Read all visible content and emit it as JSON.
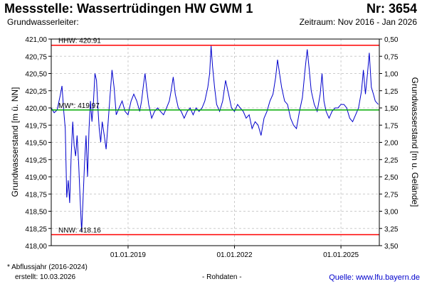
{
  "header": {
    "title": "Messstelle: Wassertrüdingen HW GWM 1",
    "number": "Nr: 3654",
    "aquifer_label": "Grundwasserleiter:",
    "period": "Zeitraum: Nov 2016 - Jan 2026"
  },
  "footer": {
    "note": "* Abflussjahr (2016-2024)",
    "created": "erstellt:  10.03.2026",
    "raw_data": "- Rohdaten -",
    "source": "Quelle: www.lfu.bayern.de"
  },
  "colors": {
    "series": "#0000cc",
    "extreme_lines": "#ff0000",
    "mean_line": "#00aa00",
    "grid": "#cccccc"
  },
  "chart_data": {
    "type": "line",
    "ylabel": "Grundwasserstand [m ü. NN]",
    "ylabel_right": "Grundwasserstand [m u. Gelände]",
    "x_range": [
      "2016-11-01",
      "2026-01-31"
    ],
    "x_ticks": [
      {
        "date": "2019-01-01",
        "label": "01.01.2019"
      },
      {
        "date": "2022-01-01",
        "label": "01.01.2022"
      },
      {
        "date": "2025-01-01",
        "label": "01.01.2025"
      }
    ],
    "ylim": [
      418.0,
      421.0
    ],
    "yticks": [
      "421,00",
      "420,75",
      "420,50",
      "420,25",
      "420,00",
      "419,75",
      "419,50",
      "419,25",
      "419,00",
      "418,75",
      "418,50",
      "418,25",
      "418,00"
    ],
    "ylim_right": [
      0.5,
      3.5
    ],
    "yticks_right": [
      "0,50",
      "0,75",
      "1,00",
      "1,25",
      "1,50",
      "1,75",
      "2,00",
      "2,25",
      "2,50",
      "2,75",
      "3,00",
      "3,25",
      "3,50"
    ],
    "grid": true,
    "reference_lines": [
      {
        "label": "HHW: 420.91",
        "value": 420.91,
        "color": "#ff0000"
      },
      {
        "label": "MW*: 419.97",
        "value": 419.97,
        "color": "#00aa00"
      },
      {
        "label": "NNW: 418.16",
        "value": 418.16,
        "color": "#ff0000"
      }
    ],
    "series": [
      {
        "values": [
          {
            "x": "2016-11-01",
            "y": 420.0
          },
          {
            "x": "2016-12-01",
            "y": 419.93
          },
          {
            "x": "2017-01-01",
            "y": 419.97
          },
          {
            "x": "2017-02-01",
            "y": 420.18
          },
          {
            "x": "2017-02-20",
            "y": 420.32
          },
          {
            "x": "2017-03-10",
            "y": 419.95
          },
          {
            "x": "2017-03-25",
            "y": 419.7
          },
          {
            "x": "2017-04-10",
            "y": 418.7
          },
          {
            "x": "2017-04-25",
            "y": 418.95
          },
          {
            "x": "2017-05-10",
            "y": 418.62
          },
          {
            "x": "2017-05-25",
            "y": 419.3
          },
          {
            "x": "2017-06-10",
            "y": 419.8
          },
          {
            "x": "2017-06-25",
            "y": 419.45
          },
          {
            "x": "2017-07-10",
            "y": 419.3
          },
          {
            "x": "2017-07-25",
            "y": 419.6
          },
          {
            "x": "2017-08-10",
            "y": 419.2
          },
          {
            "x": "2017-08-25",
            "y": 418.7
          },
          {
            "x": "2017-09-10",
            "y": 418.2
          },
          {
            "x": "2017-09-25",
            "y": 418.7
          },
          {
            "x": "2017-10-10",
            "y": 419.2
          },
          {
            "x": "2017-10-25",
            "y": 419.6
          },
          {
            "x": "2017-11-10",
            "y": 419.0
          },
          {
            "x": "2017-11-25",
            "y": 419.7
          },
          {
            "x": "2017-12-10",
            "y": 420.1
          },
          {
            "x": "2017-12-25",
            "y": 419.8
          },
          {
            "x": "2018-01-10",
            "y": 420.1
          },
          {
            "x": "2018-01-25",
            "y": 420.5
          },
          {
            "x": "2018-02-10",
            "y": 420.4
          },
          {
            "x": "2018-02-25",
            "y": 420.0
          },
          {
            "x": "2018-03-10",
            "y": 419.7
          },
          {
            "x": "2018-03-25",
            "y": 419.5
          },
          {
            "x": "2018-04-10",
            "y": 419.8
          },
          {
            "x": "2018-05-01",
            "y": 419.6
          },
          {
            "x": "2018-05-20",
            "y": 419.4
          },
          {
            "x": "2018-06-10",
            "y": 419.8
          },
          {
            "x": "2018-07-01",
            "y": 420.2
          },
          {
            "x": "2018-07-20",
            "y": 420.55
          },
          {
            "x": "2018-08-10",
            "y": 420.3
          },
          {
            "x": "2018-09-01",
            "y": 419.9
          },
          {
            "x": "2018-10-01",
            "y": 420.0
          },
          {
            "x": "2018-11-01",
            "y": 420.1
          },
          {
            "x": "2018-12-01",
            "y": 419.95
          },
          {
            "x": "2019-01-01",
            "y": 419.9
          },
          {
            "x": "2019-02-01",
            "y": 420.1
          },
          {
            "x": "2019-03-01",
            "y": 420.2
          },
          {
            "x": "2019-04-01",
            "y": 420.1
          },
          {
            "x": "2019-05-01",
            "y": 419.95
          },
          {
            "x": "2019-05-20",
            "y": 420.1
          },
          {
            "x": "2019-06-10",
            "y": 420.35
          },
          {
            "x": "2019-06-25",
            "y": 420.5
          },
          {
            "x": "2019-07-10",
            "y": 420.3
          },
          {
            "x": "2019-08-01",
            "y": 420.05
          },
          {
            "x": "2019-09-01",
            "y": 419.85
          },
          {
            "x": "2019-10-01",
            "y": 419.95
          },
          {
            "x": "2019-11-01",
            "y": 420.0
          },
          {
            "x": "2019-12-01",
            "y": 419.95
          },
          {
            "x": "2020-01-01",
            "y": 419.9
          },
          {
            "x": "2020-02-01",
            "y": 420.0
          },
          {
            "x": "2020-03-01",
            "y": 420.1
          },
          {
            "x": "2020-03-20",
            "y": 420.25
          },
          {
            "x": "2020-04-10",
            "y": 420.45
          },
          {
            "x": "2020-05-01",
            "y": 420.2
          },
          {
            "x": "2020-06-01",
            "y": 420.0
          },
          {
            "x": "2020-07-01",
            "y": 419.95
          },
          {
            "x": "2020-08-01",
            "y": 419.85
          },
          {
            "x": "2020-09-01",
            "y": 419.95
          },
          {
            "x": "2020-10-01",
            "y": 420.0
          },
          {
            "x": "2020-11-01",
            "y": 419.9
          },
          {
            "x": "2020-12-01",
            "y": 420.0
          },
          {
            "x": "2021-01-01",
            "y": 419.95
          },
          {
            "x": "2021-02-01",
            "y": 420.0
          },
          {
            "x": "2021-03-01",
            "y": 420.1
          },
          {
            "x": "2021-04-01",
            "y": 420.3
          },
          {
            "x": "2021-04-20",
            "y": 420.5
          },
          {
            "x": "2021-05-05",
            "y": 420.9
          },
          {
            "x": "2021-05-20",
            "y": 420.6
          },
          {
            "x": "2021-06-10",
            "y": 420.3
          },
          {
            "x": "2021-07-01",
            "y": 420.05
          },
          {
            "x": "2021-08-01",
            "y": 419.95
          },
          {
            "x": "2021-09-01",
            "y": 420.1
          },
          {
            "x": "2021-10-01",
            "y": 420.4
          },
          {
            "x": "2021-11-01",
            "y": 420.2
          },
          {
            "x": "2021-12-01",
            "y": 420.0
          },
          {
            "x": "2022-01-01",
            "y": 419.95
          },
          {
            "x": "2022-02-01",
            "y": 420.05
          },
          {
            "x": "2022-03-01",
            "y": 420.0
          },
          {
            "x": "2022-04-01",
            "y": 419.95
          },
          {
            "x": "2022-05-01",
            "y": 419.85
          },
          {
            "x": "2022-06-01",
            "y": 419.9
          },
          {
            "x": "2022-07-01",
            "y": 419.7
          },
          {
            "x": "2022-08-01",
            "y": 419.8
          },
          {
            "x": "2022-09-01",
            "y": 419.75
          },
          {
            "x": "2022-10-01",
            "y": 419.6
          },
          {
            "x": "2022-11-01",
            "y": 419.85
          },
          {
            "x": "2022-12-01",
            "y": 419.95
          },
          {
            "x": "2023-01-01",
            "y": 420.1
          },
          {
            "x": "2023-02-01",
            "y": 420.2
          },
          {
            "x": "2023-03-01",
            "y": 420.45
          },
          {
            "x": "2023-03-20",
            "y": 420.7
          },
          {
            "x": "2023-04-10",
            "y": 420.5
          },
          {
            "x": "2023-05-01",
            "y": 420.3
          },
          {
            "x": "2023-06-01",
            "y": 420.1
          },
          {
            "x": "2023-07-01",
            "y": 420.05
          },
          {
            "x": "2023-08-01",
            "y": 419.85
          },
          {
            "x": "2023-09-01",
            "y": 419.75
          },
          {
            "x": "2023-10-01",
            "y": 419.7
          },
          {
            "x": "2023-11-01",
            "y": 419.95
          },
          {
            "x": "2023-12-01",
            "y": 420.15
          },
          {
            "x": "2024-01-01",
            "y": 420.6
          },
          {
            "x": "2024-01-20",
            "y": 420.85
          },
          {
            "x": "2024-02-10",
            "y": 420.55
          },
          {
            "x": "2024-03-01",
            "y": 420.25
          },
          {
            "x": "2024-04-01",
            "y": 420.05
          },
          {
            "x": "2024-05-01",
            "y": 419.95
          },
          {
            "x": "2024-06-01",
            "y": 420.2
          },
          {
            "x": "2024-06-20",
            "y": 420.5
          },
          {
            "x": "2024-07-10",
            "y": 420.1
          },
          {
            "x": "2024-08-01",
            "y": 419.95
          },
          {
            "x": "2024-09-01",
            "y": 419.85
          },
          {
            "x": "2024-10-01",
            "y": 419.95
          },
          {
            "x": "2024-11-01",
            "y": 420.0
          },
          {
            "x": "2024-12-01",
            "y": 420.0
          },
          {
            "x": "2025-01-01",
            "y": 420.05
          },
          {
            "x": "2025-02-01",
            "y": 420.05
          },
          {
            "x": "2025-03-01",
            "y": 420.0
          },
          {
            "x": "2025-04-01",
            "y": 419.85
          },
          {
            "x": "2025-05-01",
            "y": 419.8
          },
          {
            "x": "2025-06-01",
            "y": 419.9
          },
          {
            "x": "2025-07-01",
            "y": 420.0
          },
          {
            "x": "2025-08-01",
            "y": 420.25
          },
          {
            "x": "2025-08-20",
            "y": 420.55
          },
          {
            "x": "2025-09-10",
            "y": 420.2
          },
          {
            "x": "2025-10-01",
            "y": 420.5
          },
          {
            "x": "2025-10-20",
            "y": 420.8
          },
          {
            "x": "2025-11-10",
            "y": 420.3
          },
          {
            "x": "2025-12-01",
            "y": 420.2
          },
          {
            "x": "2025-12-20",
            "y": 420.1
          },
          {
            "x": "2026-01-20",
            "y": 420.05
          }
        ]
      }
    ]
  }
}
